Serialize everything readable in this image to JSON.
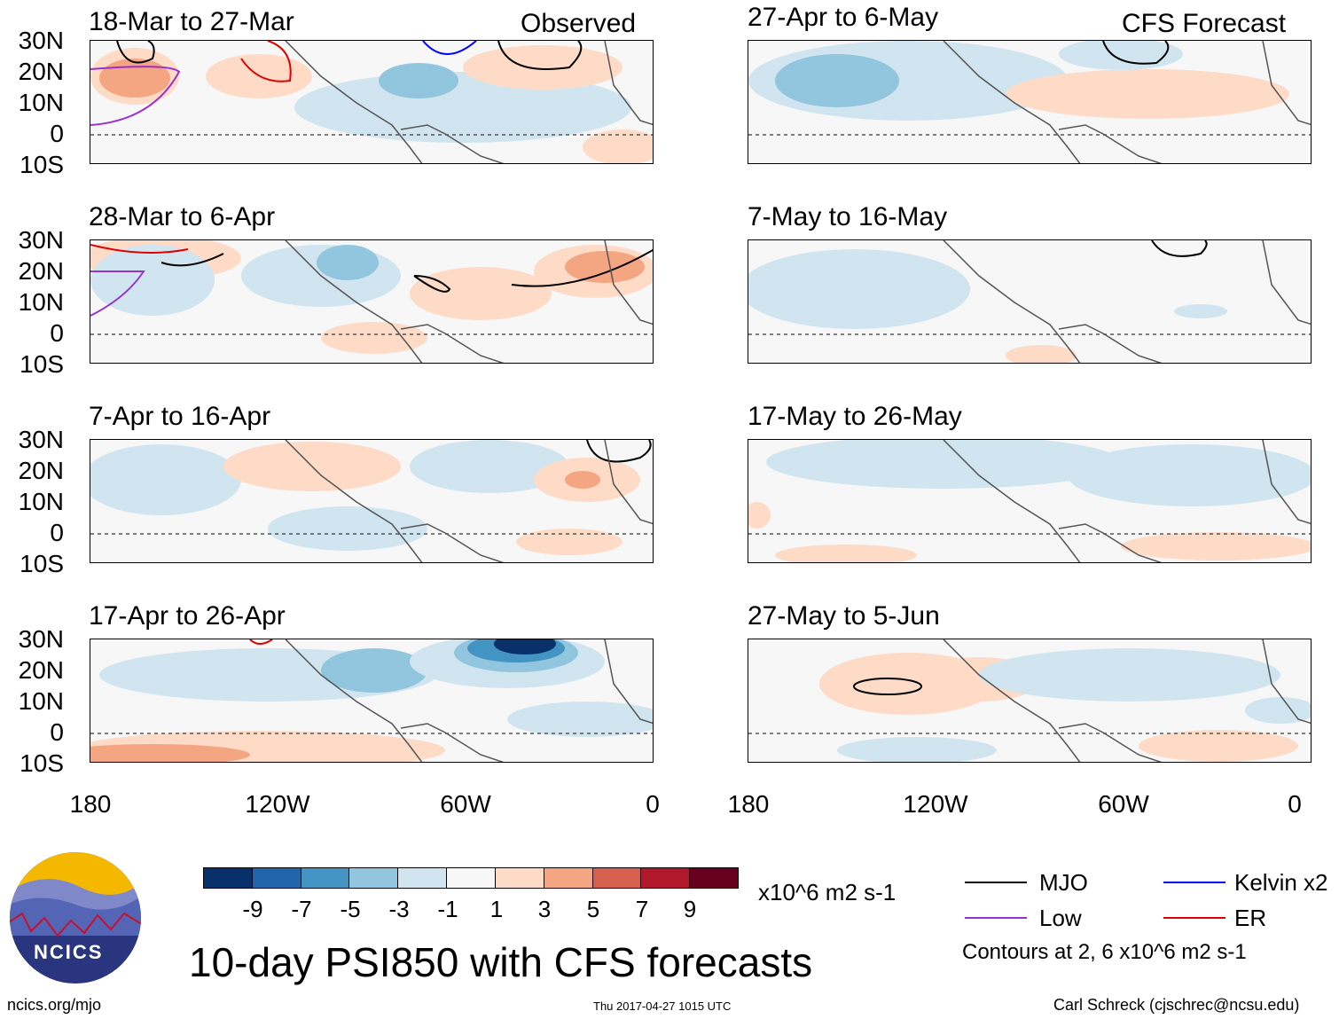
{
  "panels": {
    "left": [
      {
        "title": "18-Mar to 27-Mar",
        "label": "Observed"
      },
      {
        "title": "28-Mar to 6-Apr",
        "label": ""
      },
      {
        "title": "7-Apr to 16-Apr",
        "label": ""
      },
      {
        "title": "17-Apr to 26-Apr",
        "label": ""
      }
    ],
    "right": [
      {
        "title": "27-Apr to 6-May",
        "label": "CFS Forecast"
      },
      {
        "title": "7-May to 16-May",
        "label": ""
      },
      {
        "title": "17-May to 26-May",
        "label": ""
      },
      {
        "title": "27-May to 5-Jun",
        "label": ""
      }
    ]
  },
  "lat_labels": [
    "30N",
    "20N",
    "10N",
    "0",
    "10S"
  ],
  "lon_labels": [
    "180",
    "120W",
    "60W",
    "0"
  ],
  "colorbar": {
    "ticks": [
      "-9",
      "-7",
      "-5",
      "-3",
      "-1",
      "1",
      "3",
      "5",
      "7",
      "9"
    ],
    "colors": [
      "#08306b",
      "#2166ac",
      "#4393c3",
      "#92c5de",
      "#d1e5f0",
      "#f7f7f7",
      "#fddbc7",
      "#f4a582",
      "#d6604d",
      "#b2182b",
      "#67001f"
    ],
    "units": "x10^6 m2 s-1"
  },
  "legend": {
    "items": [
      {
        "label": "MJO",
        "color": "#000000"
      },
      {
        "label": "Kelvin x2",
        "color": "#0000ff"
      },
      {
        "label": "Low",
        "color": "#9932cc"
      },
      {
        "label": "ER",
        "color": "#e00000"
      }
    ],
    "contours_note": "Contours at 2, 6 x10^6 m2 s-1"
  },
  "main_title": "10-day PSI850 with CFS forecasts",
  "footer": {
    "left": "ncics.org/mjo",
    "center": "Thu 2017-04-27 1015 UTC",
    "right": "Carl Schreck (cjschrec@ncsu.edu)"
  },
  "logo": {
    "text": "NCICS"
  }
}
